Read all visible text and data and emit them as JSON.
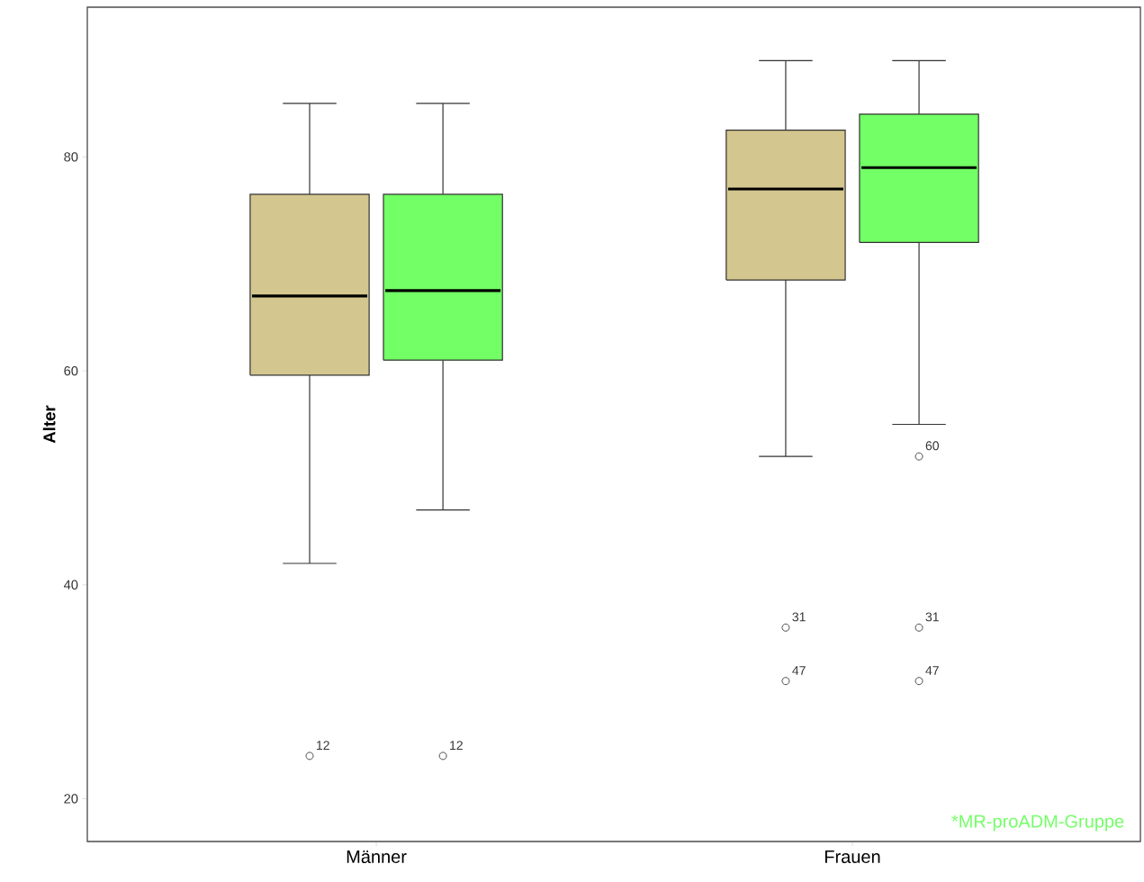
{
  "chart_data": {
    "type": "box",
    "categories": [
      "Männer",
      "Frauen"
    ],
    "ylabel": "Alter",
    "ylim": [
      16,
      94
    ],
    "yticks": [
      20,
      40,
      60,
      80
    ],
    "series": [
      {
        "color": "#d3c68f",
        "boxes": [
          {
            "low": 42,
            "q1": 59.6,
            "median": 67,
            "q3": 76.5,
            "high": 85,
            "outliers": [
              24
            ]
          },
          {
            "low": 52,
            "q1": 68.5,
            "median": 77,
            "q3": 82.5,
            "high": 89,
            "outliers": [
              36,
              31
            ]
          }
        ]
      },
      {
        "color": "#73ff66",
        "boxes": [
          {
            "low": 47,
            "q1": 61,
            "median": 67.5,
            "q3": 76.5,
            "high": 85,
            "outliers": [
              24
            ]
          },
          {
            "low": 55,
            "q1": 72,
            "median": 79,
            "q3": 84,
            "high": 89,
            "outliers": [
              52,
              36,
              31
            ]
          }
        ]
      }
    ],
    "annotations": [
      "12",
      "31",
      "47",
      "12",
      "60",
      "31",
      "47",
      "*MR-proADM-Gruppe"
    ]
  }
}
